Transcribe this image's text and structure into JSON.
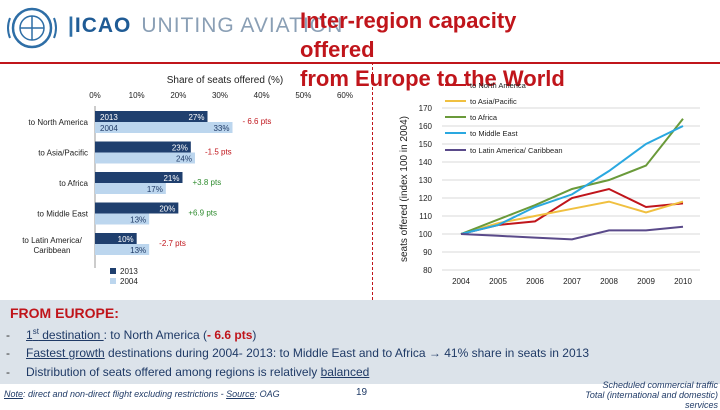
{
  "header": {
    "org": "ICAO",
    "slogan": "UNITING AVIATION",
    "title_line1": "Inter-region capacity offered",
    "title_line2": "from Europe to the World"
  },
  "chart_data": [
    {
      "type": "bar",
      "orientation": "horizontal",
      "title": "Share of seats offered (%)",
      "xlim": [
        0,
        60
      ],
      "xticks": [
        "0%",
        "10%",
        "20%",
        "30%",
        "40%",
        "50%",
        "60%"
      ],
      "categories": [
        "to North America",
        "to Asia/Pacific",
        "to Africa",
        "to Middle East",
        "to Latin America/ Caribbean"
      ],
      "series": [
        {
          "name": "2013",
          "color": "#1f3f6e",
          "values": [
            27,
            23,
            21,
            20,
            10
          ],
          "labels": [
            "27%",
            "23%",
            "21%",
            "20%",
            "10%"
          ]
        },
        {
          "name": "2004",
          "color": "#bcd6ee",
          "values": [
            33,
            24,
            17,
            13,
            13
          ],
          "labels": [
            "33%",
            "24%",
            "17%",
            "13%",
            "13%"
          ]
        }
      ],
      "year_labels": [
        "2013",
        "2004"
      ],
      "annotations": [
        "- 6.6 pts",
        "-1.5 pts",
        "+3.8 pts",
        "+6.9 pts",
        "-2.7 pts"
      ],
      "annotation_colors": [
        "#c0151b",
        "#c0151b",
        "#2e8b2e",
        "#2e8b2e",
        "#c0151b"
      ],
      "legend": [
        "2013",
        "2004"
      ]
    },
    {
      "type": "line",
      "ylabel": "seats offered (index 100 in 2004)",
      "x": [
        "2004",
        "2005",
        "2006",
        "2007",
        "2008",
        "2009",
        "2010"
      ],
      "ylim": [
        80,
        170
      ],
      "yticks": [
        80,
        90,
        100,
        110,
        120,
        130,
        140,
        150,
        160,
        170
      ],
      "series": [
        {
          "name": "to North America",
          "color": "#c0151b",
          "values": [
            100,
            105,
            107,
            120,
            125,
            115,
            117
          ]
        },
        {
          "name": "to Asia/Pacific",
          "color": "#f0c040",
          "values": [
            100,
            106,
            110,
            114,
            118,
            112,
            118
          ]
        },
        {
          "name": "to Africa",
          "color": "#6a9a3a",
          "values": [
            100,
            108,
            116,
            125,
            130,
            138,
            164
          ]
        },
        {
          "name": "to Middle East",
          "color": "#2aa8e0",
          "values": [
            100,
            105,
            115,
            122,
            135,
            150,
            160
          ]
        },
        {
          "name": "to Latin America/ Caribbean",
          "color": "#5a4a8a",
          "values": [
            100,
            99,
            98,
            97,
            102,
            102,
            104
          ]
        }
      ],
      "legend_placement": "top-right"
    }
  ],
  "summary": {
    "heading": "FROM EUROPE:",
    "b1_pre": "1",
    "b1_sup": "st",
    "b1_u": " destination ",
    "b1_mid": ": to North America (",
    "b1_red": "- 6.6 pts",
    "b1_end": ")",
    "b2_u": "Fastest growth",
    "b2_rest": " destinations during 2004- 2013: to Middle East and to Africa → 41% share in seats in 2013",
    "b3_pre": "Distribution of seats offered among regions is relatively ",
    "b3_u": "balanced"
  },
  "footer": {
    "note_label": "Note",
    "note_text": ": direct and non-direct flight excluding restrictions - ",
    "source_label": "Source",
    "source_text": ": OAG",
    "page": "19",
    "right_line1": "Scheduled commercial traffic",
    "right_line2": "Total (international and domestic) services"
  },
  "colors": {
    "accent": "#c0151b",
    "panel": "#dce3ea",
    "navy": "#1f3a66"
  }
}
